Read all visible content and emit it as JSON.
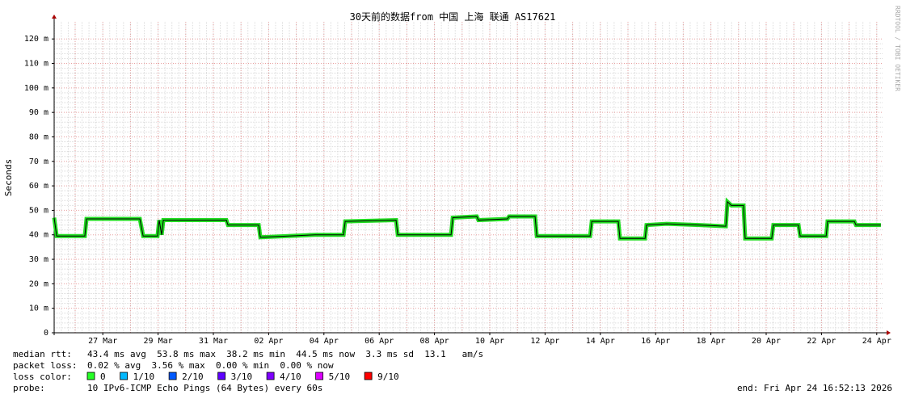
{
  "chart_data": {
    "type": "line",
    "title": "30天前的数据from 中国 上海 联通 AS17621",
    "ylabel": "Seconds",
    "side_note": "RRDTOOL / TOBI OETIKER",
    "xlim": [
      84.24,
      114.24
    ],
    "ylim": [
      0,
      127
    ],
    "xticks": [
      {
        "value": 86,
        "label": "27 Mar"
      },
      {
        "value": 88,
        "label": "29 Mar"
      },
      {
        "value": 90,
        "label": "31 Mar"
      },
      {
        "value": 92,
        "label": "02 Apr"
      },
      {
        "value": 94,
        "label": "04 Apr"
      },
      {
        "value": 96,
        "label": "06 Apr"
      },
      {
        "value": 98,
        "label": "08 Apr"
      },
      {
        "value": 100,
        "label": "10 Apr"
      },
      {
        "value": 102,
        "label": "12 Apr"
      },
      {
        "value": 104,
        "label": "14 Apr"
      },
      {
        "value": 106,
        "label": "16 Apr"
      },
      {
        "value": 108,
        "label": "18 Apr"
      },
      {
        "value": 110,
        "label": "20 Apr"
      },
      {
        "value": 112,
        "label": "22 Apr"
      },
      {
        "value": 114,
        "label": "24 Apr"
      }
    ],
    "yticks": [
      0,
      {
        "value": 10,
        "label": "10 m"
      },
      {
        "value": 20,
        "label": "20 m"
      },
      {
        "value": 30,
        "label": "30 m"
      },
      {
        "value": 40,
        "label": "40 m"
      },
      {
        "value": 50,
        "label": "50 m"
      },
      {
        "value": 60,
        "label": "60 m"
      },
      {
        "value": 70,
        "label": "70 m"
      },
      {
        "value": 80,
        "label": "80 m"
      },
      {
        "value": 90,
        "label": "90 m"
      },
      {
        "value": 100,
        "label": "100 m"
      },
      {
        "value": 110,
        "label": "110 m"
      },
      {
        "value": 120,
        "label": "120 m"
      }
    ],
    "grid": true,
    "series": [
      {
        "name": "median rtt",
        "color": "#22dd22",
        "x": [
          84.24,
          84.33,
          85.35,
          85.41,
          87.34,
          87.46,
          87.98,
          88.04,
          88.13,
          88.19,
          90.47,
          90.53,
          91.64,
          91.7,
          93.68,
          94.71,
          94.77,
          96.61,
          96.67,
          98.6,
          98.66,
          99.53,
          99.59,
          100.64,
          100.7,
          101.64,
          101.7,
          103.63,
          103.69,
          104.65,
          104.71,
          105.62,
          105.67,
          106.4,
          107.57,
          108.54,
          108.6,
          108.74,
          109.18,
          109.24,
          110.2,
          110.26,
          111.17,
          111.23,
          112.17,
          112.22,
          113.19,
          113.25,
          114.15
        ],
        "values": [
          47,
          39.5,
          39.5,
          46.5,
          46.5,
          39.5,
          39.5,
          46,
          40,
          46,
          46,
          44,
          44,
          39,
          40,
          40,
          45.5,
          46,
          40,
          40,
          47,
          47.5,
          46,
          46.5,
          47.5,
          47.5,
          39.5,
          39.5,
          45.5,
          45.5,
          38.5,
          38.5,
          44,
          44.5,
          44,
          43.5,
          53.5,
          52,
          52,
          38.5,
          38.5,
          44,
          44,
          39.5,
          39.5,
          45.5,
          45.5,
          44,
          44
        ]
      }
    ],
    "stats": [
      {
        "label": "median rtt:",
        "text": "43.4 ms avg  53.8 ms max  38.2 ms min  44.5 ms now  3.3 ms sd  13.1   am/s"
      },
      {
        "label": "packet loss:",
        "text": "0.02 % avg  3.56 % max  0.00 % min  0.00 % now"
      }
    ],
    "loss_label": "loss color:",
    "loss_legend": [
      {
        "label": "0",
        "color": "#26ff26"
      },
      {
        "label": "1/10",
        "color": "#00b8ff"
      },
      {
        "label": "2/10",
        "color": "#0059ff"
      },
      {
        "label": "3/10",
        "color": "#5e00ff"
      },
      {
        "label": "4/10",
        "color": "#7e00ff"
      },
      {
        "label": "5/10",
        "color": "#dd00ff"
      },
      {
        "label": "9/10",
        "color": "#ff0000"
      }
    ],
    "probe_label": "probe:",
    "probe_text": "10 IPv6-ICMP Echo Pings (64 Bytes) every 60s",
    "end_text": "end: Fri Apr 24 16:52:13 2026"
  }
}
